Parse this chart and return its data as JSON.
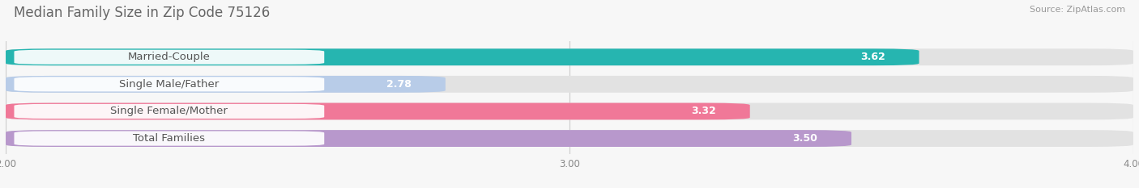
{
  "title": "Median Family Size in Zip Code 75126",
  "source": "Source: ZipAtlas.com",
  "categories": [
    "Married-Couple",
    "Single Male/Father",
    "Single Female/Mother",
    "Total Families"
  ],
  "values": [
    3.62,
    2.78,
    3.32,
    3.5
  ],
  "bar_colors": [
    "#26b5b0",
    "#b8cce8",
    "#f07898",
    "#b898cc"
  ],
  "x_min": 2.0,
  "x_max": 4.0,
  "x_ticks": [
    2.0,
    3.0,
    4.0
  ],
  "bar_height": 0.62,
  "background_color": "#f7f7f7",
  "title_fontsize": 12,
  "source_fontsize": 8,
  "label_fontsize": 9.5,
  "value_fontsize": 9
}
